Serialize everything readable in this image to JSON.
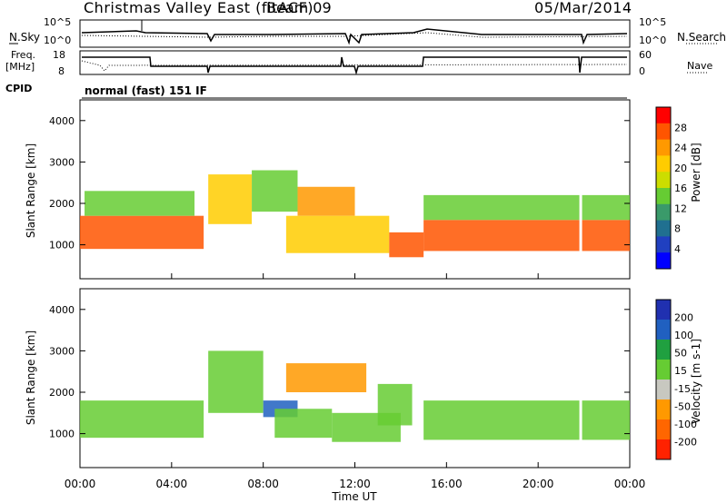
{
  "header": {
    "station": "Christmas Valley East (fitACF)",
    "beam": "Beam 09",
    "date": "05/Mar/2014"
  },
  "top_panels": {
    "nsky_label": "N.Sky",
    "nsearch_label": "N.Search",
    "noise_ticks": [
      "10^5",
      "10^0"
    ],
    "freq_label": "Freq.",
    "freq_unit": "[MHz]",
    "freq_ticks": [
      "18",
      "8"
    ],
    "nave_label": "Nave",
    "nave_ticks": [
      "60",
      "0"
    ],
    "cpid_label": "CPID",
    "cpid_mode": "normal (fast) 151 IF"
  },
  "x_axis": {
    "label": "Time UT",
    "ticks": [
      "00:00",
      "04:00",
      "08:00",
      "12:00",
      "16:00",
      "20:00",
      "00:00"
    ]
  },
  "power_panel": {
    "ylabel": "Slant Range [km]",
    "yticks": [
      "4000",
      "3000",
      "2000",
      "1000"
    ],
    "colorbar_label": "Power [dB]",
    "colorbar_ticks": [
      "28",
      "24",
      "20",
      "16",
      "12",
      "8",
      "4"
    ],
    "colors": [
      "#0000ff",
      "#2040c0",
      "#207090",
      "#3a9a6a",
      "#66cc33",
      "#ccdd00",
      "#ffcc00",
      "#ff9900",
      "#ff5500",
      "#ff0000"
    ]
  },
  "velocity_panel": {
    "ylabel": "Slant Range [km]",
    "yticks": [
      "4000",
      "3000",
      "2000",
      "1000"
    ],
    "colorbar_label": "Velocity [m s-1]",
    "colorbar_ticks": [
      "200",
      "100",
      "50",
      "15",
      "-15",
      "-50",
      "-100",
      "-200"
    ],
    "colors": [
      "#2030b0",
      "#2060c0",
      "#20a040",
      "#66cc33",
      "#c8c8c0",
      "#ff9900",
      "#ff6600",
      "#ff2200"
    ]
  },
  "chart_data": [
    {
      "type": "heatmap",
      "title": "Power",
      "xlabel": "Time UT",
      "ylabel": "Slant Range [km]",
      "x_range_hours": [
        0,
        24
      ],
      "y_range_km": [
        180,
        4500
      ],
      "value_range_db": [
        0,
        30
      ],
      "regions": [
        {
          "t0": 0.0,
          "t1": 5.4,
          "r0": 900,
          "r1": 1700,
          "power_db": 28
        },
        {
          "t0": 0.2,
          "t1": 5.0,
          "r0": 1700,
          "r1": 2300,
          "power_db": 12
        },
        {
          "t0": 5.6,
          "t1": 7.5,
          "r0": 1500,
          "r1": 2700,
          "power_db": 20
        },
        {
          "t0": 7.5,
          "t1": 9.5,
          "r0": 1800,
          "r1": 2800,
          "power_db": 12
        },
        {
          "t0": 9.5,
          "t1": 12.0,
          "r0": 1700,
          "r1": 2400,
          "power_db": 24
        },
        {
          "t0": 9.0,
          "t1": 13.5,
          "r0": 800,
          "r1": 1700,
          "power_db": 20
        },
        {
          "t0": 13.5,
          "t1": 15.0,
          "r0": 700,
          "r1": 1300,
          "power_db": 28
        },
        {
          "t0": 15.0,
          "t1": 24.0,
          "r0": 850,
          "r1": 1600,
          "power_db": 28
        },
        {
          "t0": 15.0,
          "t1": 24.0,
          "r0": 1600,
          "r1": 2200,
          "power_db": 12
        }
      ]
    },
    {
      "type": "heatmap",
      "title": "Velocity",
      "xlabel": "Time UT",
      "ylabel": "Slant Range [km]",
      "x_range_hours": [
        0,
        24
      ],
      "y_range_km": [
        180,
        4500
      ],
      "value_range_ms": [
        -200,
        200
      ],
      "regions": [
        {
          "t0": 0.0,
          "t1": 5.4,
          "r0": 900,
          "r1": 1800,
          "velocity": 0
        },
        {
          "t0": 5.6,
          "t1": 8.0,
          "r0": 1500,
          "r1": 3000,
          "velocity": 0
        },
        {
          "t0": 8.0,
          "t1": 9.5,
          "r0": 1400,
          "r1": 1800,
          "velocity": 120
        },
        {
          "t0": 9.0,
          "t1": 12.5,
          "r0": 2000,
          "r1": 2700,
          "velocity": -70
        },
        {
          "t0": 8.5,
          "t1": 11.0,
          "r0": 900,
          "r1": 1600,
          "velocity": 40
        },
        {
          "t0": 11.0,
          "t1": 14.0,
          "r0": 800,
          "r1": 1500,
          "velocity": 0
        },
        {
          "t0": 13.0,
          "t1": 14.5,
          "r0": 1200,
          "r1": 2200,
          "velocity": 40
        },
        {
          "t0": 15.0,
          "t1": 24.0,
          "r0": 850,
          "r1": 1800,
          "velocity": 0
        }
      ]
    }
  ]
}
